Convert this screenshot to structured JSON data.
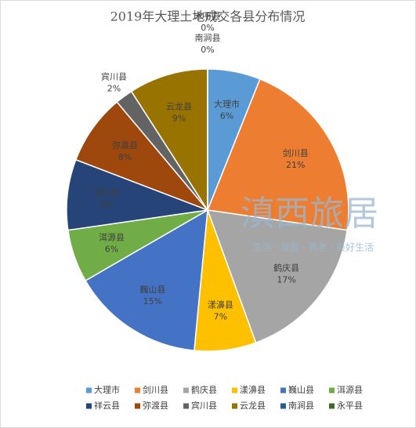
{
  "chart_data": {
    "type": "pie",
    "title": "2019年大理土地成交各县分布情况",
    "categories": [
      "大理市",
      "剑川县",
      "鹤庆县",
      "漾濞县",
      "巍山县",
      "洱源县",
      "祥云县",
      "弥渡县",
      "宾川县",
      "云龙县",
      "南涧县",
      "永平县"
    ],
    "values": [
      6,
      21,
      17,
      7,
      15,
      6,
      8,
      8,
      2,
      9,
      0,
      0
    ],
    "value_labels": [
      "6%",
      "21%",
      "17%",
      "7%",
      "15%",
      "6%",
      "8%",
      "8%",
      "2%",
      "9%",
      "0%",
      "0%"
    ],
    "colors": [
      "#5b9bd5",
      "#ed7d31",
      "#a5a5a5",
      "#ffc000",
      "#4472c4",
      "#70ad47",
      "#264478",
      "#9e480e",
      "#636363",
      "#997300",
      "#255e91",
      "#43682b"
    ],
    "legend": "bottom",
    "watermark": {
      "title": "滇西旅居",
      "subtitle": "生活 · 度假 · 养老 · 美好生活"
    }
  }
}
